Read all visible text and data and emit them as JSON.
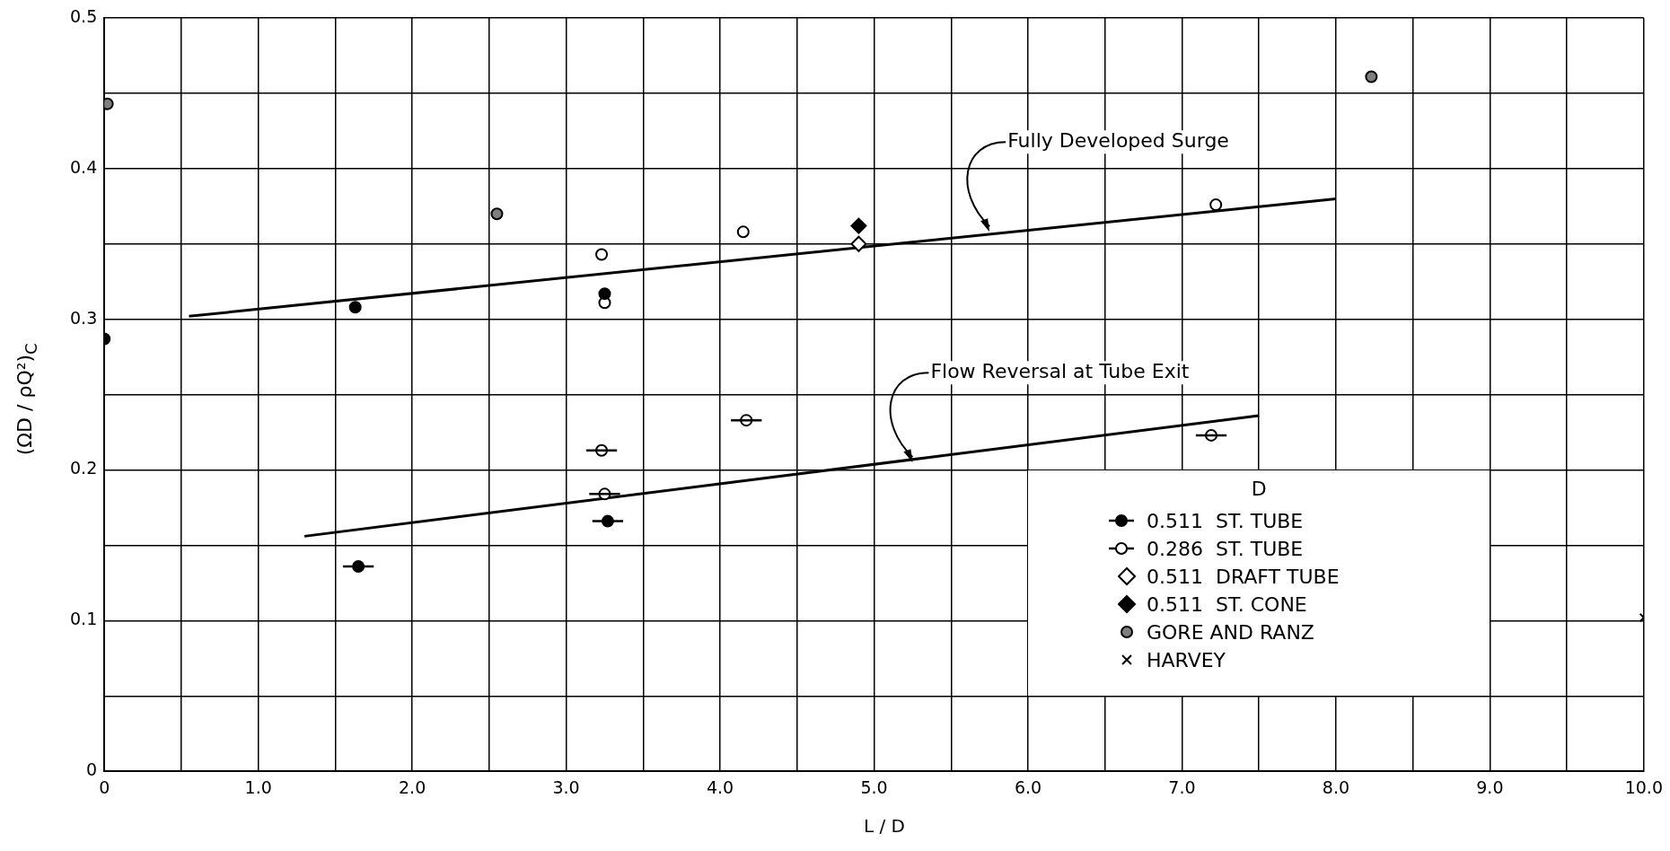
{
  "chart_data": {
    "type": "scatter",
    "xlabel": "L / D",
    "ylabel": "(ΩD / ρQ²)$_{C}$",
    "legend_title": "D",
    "xlim": [
      0,
      10
    ],
    "ylim": [
      0,
      0.5
    ],
    "xticks": [
      0,
      {
        "value": 0.5,
        "label": null
      },
      {
        "value": 1,
        "label": "1.0"
      },
      {
        "value": 1.5,
        "label": null
      },
      {
        "value": 2,
        "label": "2.0"
      },
      {
        "value": 2.5,
        "label": null
      },
      {
        "value": 3,
        "label": "3.0"
      },
      {
        "value": 3.5,
        "label": null
      },
      {
        "value": 4,
        "label": "4.0"
      },
      {
        "value": 4.5,
        "label": null
      },
      {
        "value": 5,
        "label": "5.0"
      },
      {
        "value": 5.5,
        "label": null
      },
      {
        "value": 6,
        "label": "6.0"
      },
      {
        "value": 6.5,
        "label": null
      },
      {
        "value": 7,
        "label": "7.0"
      },
      {
        "value": 7.5,
        "label": null
      },
      {
        "value": 8,
        "label": "8.0"
      },
      {
        "value": 8.5,
        "label": null
      },
      {
        "value": 9,
        "label": "9.0"
      },
      {
        "value": 9.5,
        "label": null
      },
      {
        "value": 10,
        "label": "10.0"
      }
    ],
    "yticks": [
      0,
      {
        "value": 0.05,
        "label": null
      },
      0.1,
      {
        "value": 0.15,
        "label": null
      },
      0.2,
      {
        "value": 0.25,
        "label": null
      },
      0.3,
      {
        "value": 0.35,
        "label": null
      },
      0.4,
      {
        "value": 0.45,
        "label": null
      },
      0.5
    ],
    "grid": true,
    "legend": "bottom right",
    "series": [
      {
        "name": "0.511  ST. TUBE",
        "type": "scatter",
        "marker": "circle",
        "color": "#000000",
        "x": [
          0,
          1.63,
          3.25,
          1.65,
          3.27
        ],
        "values": [
          0.287,
          0.308,
          0.317,
          0.136,
          0.166
        ],
        "xerrors": [
          null,
          null,
          null,
          0.1,
          0.1
        ]
      },
      {
        "name": "0.286  ST. TUBE",
        "type": "scatter",
        "marker": "circle",
        "color": "#ffffff",
        "x": [
          3.23,
          3.25,
          4.15,
          7.22,
          3.23,
          3.25,
          4.17,
          7.19
        ],
        "values": [
          0.343,
          0.311,
          0.358,
          0.376,
          0.213,
          0.184,
          0.233,
          0.223
        ],
        "xerrors": [
          null,
          null,
          null,
          null,
          0.1,
          0.1,
          0.1,
          0.1
        ]
      },
      {
        "name": "0.511  DRAFT TUBE",
        "type": "scatter",
        "marker": "diamond",
        "color": "#ffffff",
        "x": [
          4.9
        ],
        "values": [
          0.35
        ]
      },
      {
        "name": "0.511  ST. CONE",
        "type": "scatter",
        "marker": "diamond",
        "color": "#000000",
        "x": [
          4.9
        ],
        "values": [
          0.362
        ]
      },
      {
        "name": "GORE AND RANZ",
        "type": "scatter",
        "marker": "circle",
        "color": "#7f7f7f",
        "x": [
          0.02,
          2.55,
          8.23
        ],
        "values": [
          0.443,
          0.37,
          0.461
        ]
      },
      {
        "name": "HARVEY",
        "type": "scatter",
        "marker": "cross",
        "color": "#000000",
        "x": [
          10
        ],
        "values": [
          0.102
        ]
      },
      {
        "type": "line",
        "color": "#000000",
        "x": [
          0.55,
          8.0
        ],
        "values": [
          0.302,
          0.38
        ]
      },
      {
        "type": "line",
        "color": "#000000",
        "x": [
          1.3,
          7.5
        ],
        "values": [
          0.156,
          0.236
        ]
      }
    ],
    "annotations": [
      {
        "text": "Fully Developed Surge",
        "x": 5.75,
        "y": 0.358
      },
      {
        "text": "Flow Reversal at Tube Exit",
        "x": 5.25,
        "y": 0.205
      }
    ]
  }
}
